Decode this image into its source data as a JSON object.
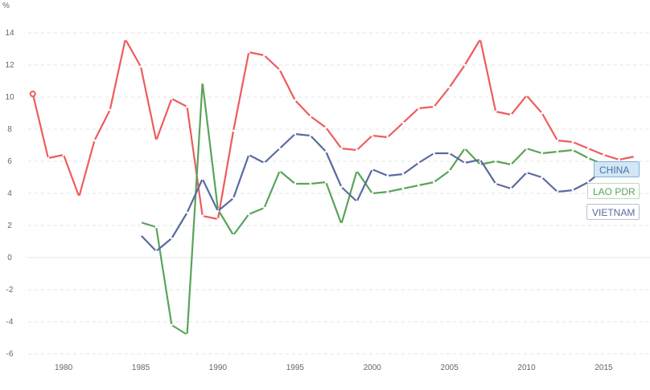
{
  "chart_data": {
    "type": "line",
    "ylabel": "%",
    "ylim": [
      -6,
      15
    ],
    "xlim": [
      1977.7,
      2018
    ],
    "grid": true,
    "x_ticks": [
      1980,
      1985,
      1990,
      1995,
      2000,
      2005,
      2010,
      2015
    ],
    "y_ticks": [
      -6,
      -4,
      -2,
      0,
      2,
      4,
      6,
      8,
      10,
      12,
      14
    ],
    "legend_position": "right",
    "series": [
      {
        "name": "CHINA",
        "color": "#ee5c5c",
        "text_color": "#3f76b0",
        "bg": "#d4e6f3",
        "border": "#7fb3dc",
        "x": [
          1978,
          1979,
          1980,
          1981,
          1982,
          1983,
          1984,
          1985,
          1986,
          1987,
          1988,
          1989,
          1990,
          1991,
          1992,
          1993,
          1994,
          1995,
          1996,
          1997,
          1998,
          1999,
          2000,
          2001,
          2002,
          2003,
          2004,
          2005,
          2006,
          2007,
          2008,
          2009,
          2010,
          2011,
          2012,
          2013,
          2014,
          2015,
          2016,
          2017
        ],
        "values": [
          10.2,
          6.2,
          6.4,
          3.8,
          7.3,
          9.2,
          13.6,
          11.9,
          7.3,
          9.9,
          9.4,
          2.6,
          2.4,
          7.9,
          12.8,
          12.6,
          11.7,
          9.8,
          8.8,
          8.1,
          6.8,
          6.7,
          7.6,
          7.5,
          8.4,
          9.3,
          9.4,
          10.6,
          12.0,
          13.6,
          9.1,
          8.9,
          10.1,
          9.0,
          7.3,
          7.2,
          6.8,
          6.4,
          6.1,
          6.3
        ]
      },
      {
        "name": "LAO PDR",
        "color": "#5aa35a",
        "text_color": "#5aa35a",
        "bg": "#ffffff",
        "border": "#bcd9bc",
        "x": [
          1985,
          1986,
          1987,
          1988,
          1989,
          1990,
          1991,
          1992,
          1993,
          1994,
          1995,
          1996,
          1997,
          1998,
          1999,
          2000,
          2001,
          2002,
          2003,
          2004,
          2005,
          2006,
          2007,
          2008,
          2009,
          2010,
          2011,
          2012,
          2013,
          2014,
          2015
        ],
        "values": [
          2.2,
          1.9,
          -4.2,
          -4.8,
          10.9,
          3.0,
          1.4,
          2.7,
          3.1,
          5.4,
          4.6,
          4.6,
          4.7,
          2.1,
          5.4,
          4.0,
          4.1,
          4.3,
          4.5,
          4.7,
          5.4,
          6.8,
          5.8,
          6.0,
          5.8,
          6.8,
          6.5,
          6.6,
          6.7,
          6.2,
          5.8
        ]
      },
      {
        "name": "VIETNAM",
        "color": "#5a6aa0",
        "text_color": "#5a6aa0",
        "bg": "#ffffff",
        "border": "#b8bfd6",
        "x": [
          1985,
          1986,
          1987,
          1988,
          1989,
          1990,
          1991,
          1992,
          1993,
          1994,
          1995,
          1996,
          1997,
          1998,
          1999,
          2000,
          2001,
          2002,
          2003,
          2004,
          2005,
          2006,
          2007,
          2008,
          2009,
          2010,
          2011,
          2012,
          2013,
          2014,
          2015
        ],
        "values": [
          1.4,
          0.4,
          1.2,
          2.8,
          4.9,
          2.9,
          3.7,
          6.4,
          5.9,
          6.8,
          7.7,
          7.6,
          6.6,
          4.4,
          3.5,
          5.5,
          5.1,
          5.2,
          5.9,
          6.5,
          6.5,
          5.9,
          6.1,
          4.6,
          4.3,
          5.3,
          5.0,
          4.1,
          4.2,
          4.7,
          5.5
        ]
      }
    ]
  }
}
